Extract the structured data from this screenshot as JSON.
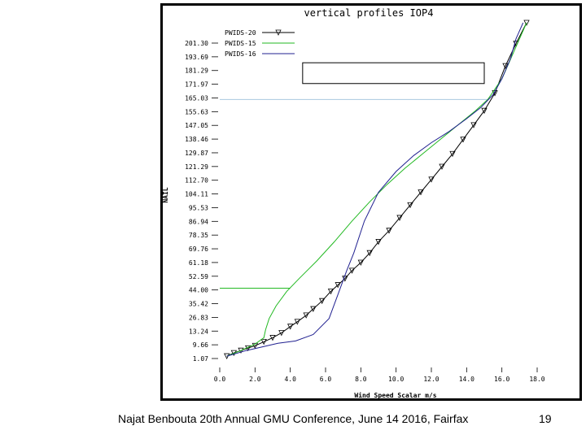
{
  "footer": {
    "caption": "Najat Benbouta 20th Annual GMU Conference, June 14 2016, Fairfax",
    "page_number": "19"
  },
  "chart_data": {
    "type": "line",
    "title": "vertical profiles IOP4",
    "xlabel": "Wind Speed Scalar m/s",
    "ylabel": "NAIL",
    "xlim": [
      0,
      18
    ],
    "ylim": [
      0,
      209
    ],
    "x_ticks": [
      "0.0",
      "2.0",
      "4.0",
      "6.0",
      "8.0",
      "10.0",
      "12.0",
      "14.0",
      "16.0",
      "18.0"
    ],
    "y_ticks": [
      "1.07",
      "9.66",
      "13.24",
      "26.83",
      "35.42",
      "44.00",
      "52.59",
      "61.18",
      "69.76",
      "78.35",
      "86.94",
      "95.53",
      "104.11",
      "112.70",
      "121.29",
      "129.87",
      "138.46",
      "147.05",
      "155.63",
      "165.03",
      "171.97",
      "181.29",
      "193.69",
      "201.30"
    ],
    "legend_position": "top-left",
    "colors": {
      "pwids20": "#000000",
      "pwids15": "#22b922",
      "pwids16": "#202090",
      "reference_line": "#a8c8e0"
    },
    "series": [
      {
        "name": "PWIDS-20",
        "marker": "triangle",
        "x": [
          0.4,
          0.8,
          1.2,
          1.6,
          2.0,
          2.5,
          3.0,
          3.5,
          4.0,
          4.4,
          4.9,
          5.3,
          5.8,
          6.3,
          6.7,
          7.1,
          7.5,
          8.0,
          8.5,
          9.0,
          9.6,
          10.2,
          10.8,
          11.4,
          12.0,
          12.6,
          13.2,
          13.8,
          14.4,
          15.0,
          15.6,
          16.2,
          16.8,
          17.4
        ],
        "y": [
          1.5,
          3.5,
          5.0,
          6.5,
          8.0,
          10.5,
          13.0,
          16.0,
          20.0,
          23.0,
          27.0,
          31.0,
          36.0,
          42.0,
          46.0,
          50.0,
          55.0,
          60.0,
          66.0,
          73.0,
          80.0,
          88.0,
          96.0,
          104.0,
          112.0,
          120.0,
          128.0,
          137.0,
          146.0,
          155.0,
          166.0,
          183.0,
          197.0,
          210.0
        ]
      },
      {
        "name": "PWIDS-15",
        "marker": "none",
        "x": [
          0.4,
          1.2,
          2.0,
          2.5,
          2.6,
          2.8,
          3.2,
          3.8,
          4.5,
          5.5,
          6.5,
          7.5,
          8.5,
          9.5,
          10.5,
          11.5,
          12.5,
          13.5,
          14.5,
          15.2,
          16.0,
          16.8,
          17.4
        ],
        "y": [
          1.5,
          5.0,
          9.0,
          13.0,
          18.0,
          25.0,
          33.0,
          42.0,
          50.0,
          61.0,
          73.0,
          86.0,
          98.0,
          109.0,
          119.0,
          128.0,
          137.0,
          146.0,
          155.0,
          162.0,
          175.0,
          195.0,
          210.0
        ]
      },
      {
        "name": "PWIDS-16",
        "marker": "none",
        "x": [
          0.4,
          1.5,
          2.5,
          3.3,
          4.3,
          5.3,
          6.2,
          6.7,
          7.2,
          7.6,
          8.2,
          9.0,
          10.0,
          11.0,
          12.0,
          13.0,
          14.0,
          14.8,
          15.5,
          16.0,
          16.5,
          16.8,
          17.2
        ],
        "y": [
          1.5,
          5.0,
          7.5,
          9.5,
          11.0,
          15.0,
          25.0,
          40.0,
          55.0,
          66.0,
          86.0,
          104.0,
          117.0,
          127.0,
          135.0,
          142.0,
          150.0,
          157.0,
          165.0,
          175.0,
          188.0,
          200.0,
          210.0
        ]
      }
    ],
    "reference_lines": [
      {
        "orientation": "horizontal",
        "y": 44.0,
        "x_from": 0,
        "x_to": 4.0,
        "color_key": "pwids15"
      },
      {
        "orientation": "horizontal",
        "y": 162.0,
        "x_from": 0,
        "x_to": 15.2,
        "color_key": "reference_line"
      }
    ],
    "annotation_box": {
      "x_from": 4.7,
      "x_to": 15.0,
      "y_from": 172.0,
      "y_to": 185.0
    }
  }
}
